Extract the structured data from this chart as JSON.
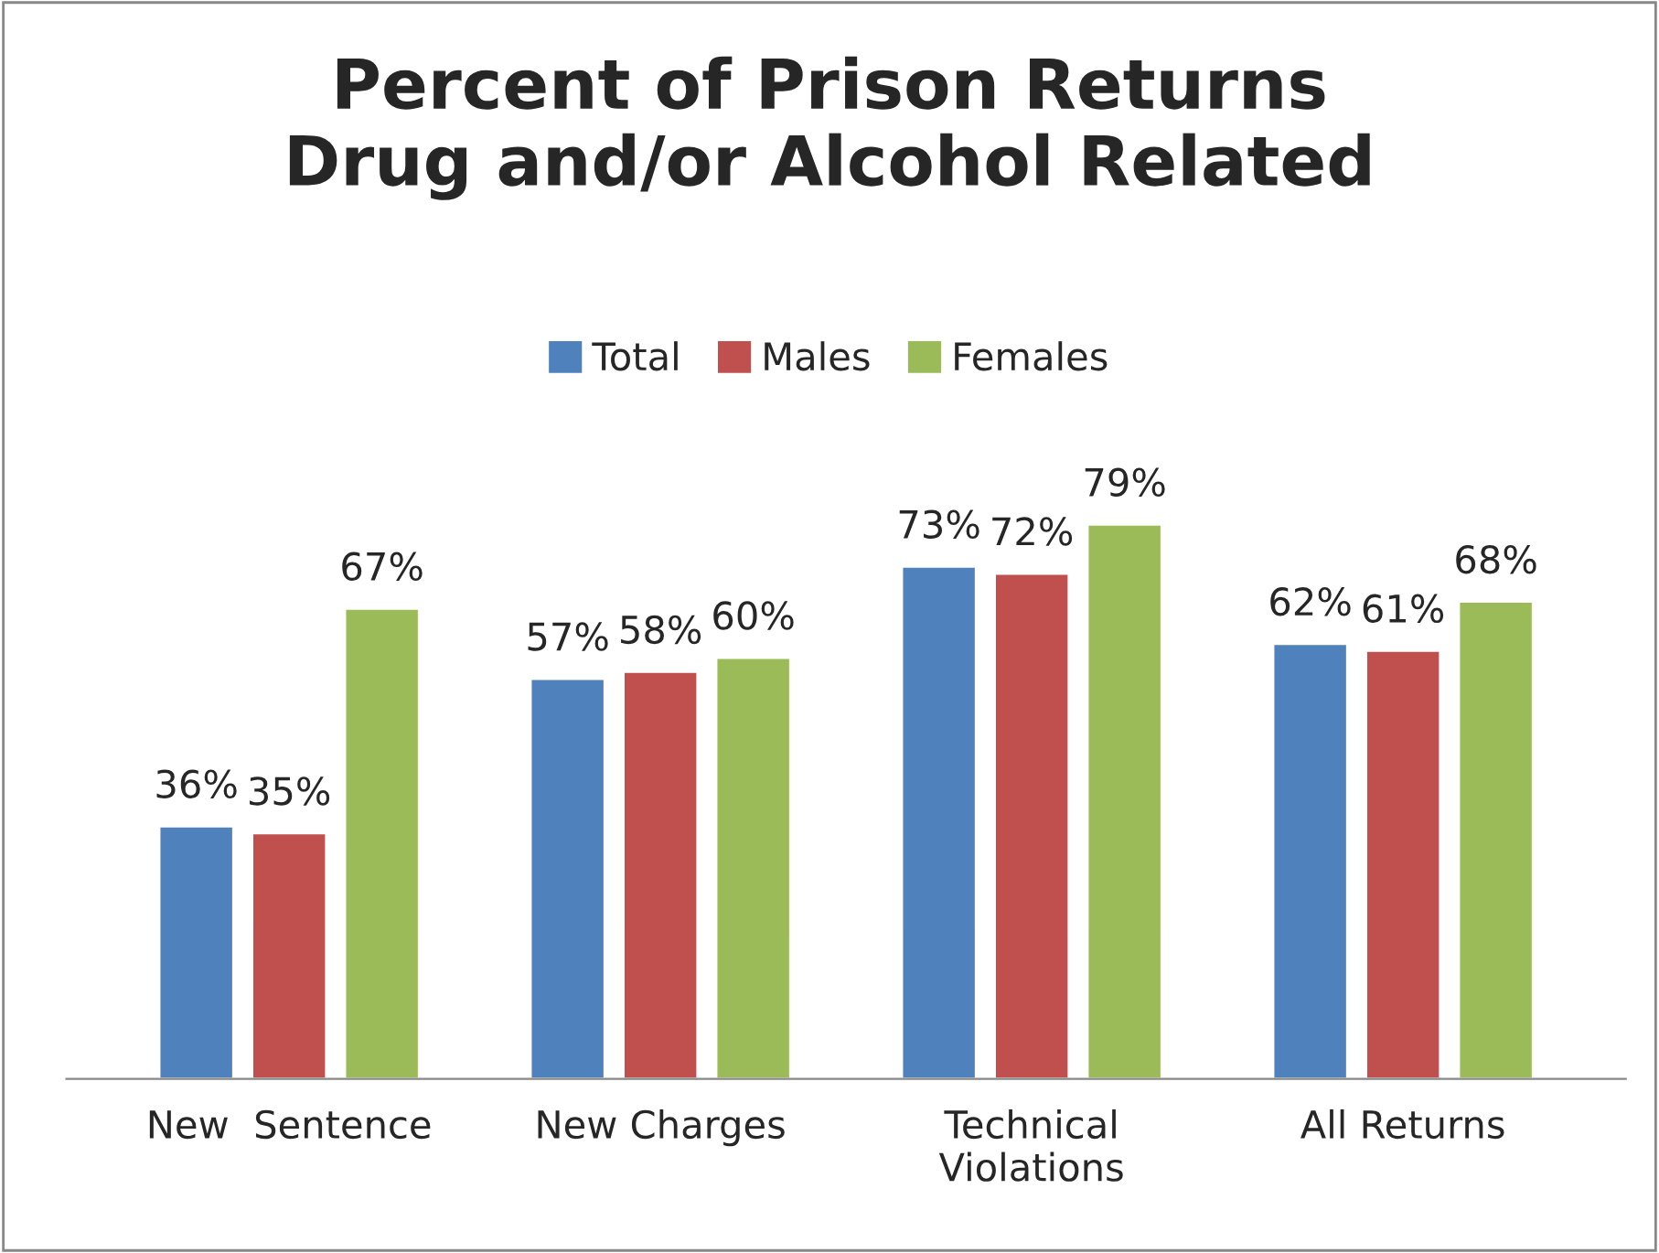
{
  "chart_data": {
    "type": "bar",
    "title": "Percent of Prison Returns\nDrug and/or Alcohol Related",
    "categories": [
      "New  Sentence",
      "New Charges",
      "Technical\nViolations",
      "All Returns"
    ],
    "series": [
      {
        "name": "Total",
        "color": "#4f81bd",
        "values": [
          36,
          57,
          73,
          62
        ],
        "value_labels": [
          "36%",
          "57%",
          "73%",
          "62%"
        ]
      },
      {
        "name": "Males",
        "color": "#c0504d",
        "values": [
          35,
          58,
          72,
          61
        ],
        "value_labels": [
          "35%",
          "58%",
          "72%",
          "61%"
        ]
      },
      {
        "name": "Females",
        "color": "#9bbb59",
        "values": [
          67,
          60,
          79,
          68
        ],
        "value_labels": [
          "67%",
          "60%",
          "79%",
          "68%"
        ]
      }
    ],
    "legend": "top",
    "grid": false
  }
}
